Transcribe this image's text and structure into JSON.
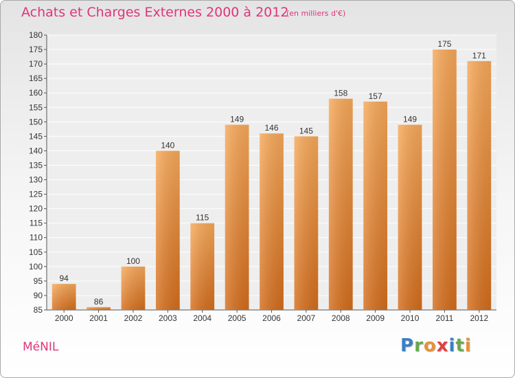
{
  "header": {
    "title": "Achats et Charges Externes 2000 à 2012",
    "subtitle": "(en milliers d'€)"
  },
  "footer": {
    "commune": "MéNIL",
    "logo_text": "Proxiti"
  },
  "colors": {
    "title": "#e0347a",
    "bar_light": "#f7a95a",
    "bar_dark": "#d8701e",
    "grid": "#ffffff"
  },
  "chart_data": {
    "type": "bar",
    "title": "Achats et Charges Externes 2000 à 2012",
    "subtitle": "(en milliers d'€)",
    "xlabel": "",
    "ylabel": "",
    "categories": [
      "2000",
      "2001",
      "2002",
      "2003",
      "2004",
      "2005",
      "2006",
      "2007",
      "2008",
      "2009",
      "2010",
      "2011",
      "2012"
    ],
    "values": [
      94,
      86,
      100,
      140,
      115,
      149,
      146,
      145,
      158,
      157,
      149,
      175,
      171
    ],
    "ylim": [
      85,
      180
    ],
    "ytick_step": 5,
    "grid": true,
    "data_labels": true
  }
}
